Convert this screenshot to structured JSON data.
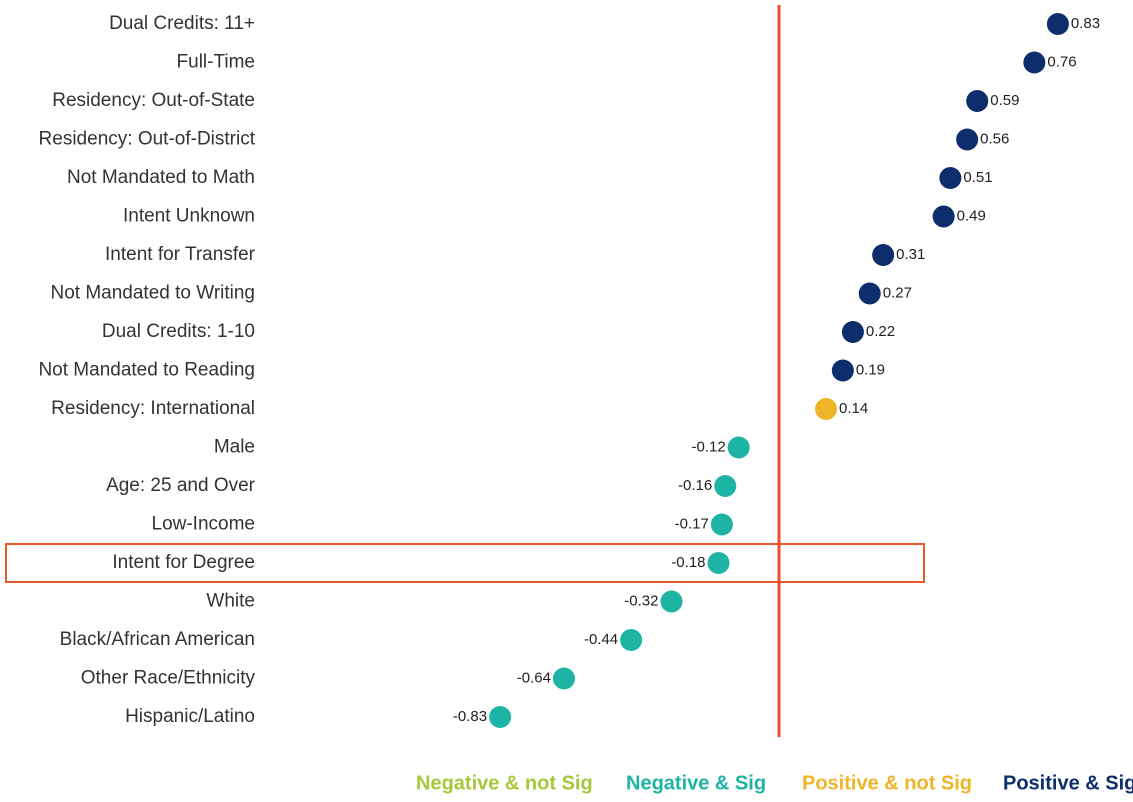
{
  "chart_data": {
    "type": "dot",
    "categories": [
      "Dual Credits: 11+",
      "Full-Time",
      "Residency: Out-of-State",
      "Residency: Out-of-District",
      "Not Mandated to Math",
      "Intent Unknown",
      "Intent for Transfer",
      "Not Mandated to Writing",
      "Dual Credits: 1-10",
      "Not Mandated to Reading",
      "Residency: International",
      "Male",
      "Age: 25 and Over",
      "Low-Income",
      "Intent for Degree",
      "White",
      "Black/African American",
      "Other Race/Ethnicity",
      "Hispanic/Latino"
    ],
    "series": [
      {
        "name": "Negative & not Sig",
        "color": "#a8c83c",
        "values": [
          null,
          null,
          null,
          null,
          null,
          null,
          null,
          null,
          null,
          null,
          null,
          null,
          null,
          null,
          null,
          null,
          null,
          null,
          null
        ]
      },
      {
        "name": "Negative & Sig",
        "color": "#1eb4a4",
        "values": [
          null,
          null,
          null,
          null,
          null,
          null,
          null,
          null,
          null,
          null,
          null,
          -0.12,
          -0.16,
          -0.17,
          -0.18,
          -0.32,
          -0.44,
          -0.64,
          -0.83
        ]
      },
      {
        "name": "Positive & not Sig",
        "color": "#f0b429",
        "values": [
          null,
          null,
          null,
          null,
          null,
          null,
          null,
          null,
          null,
          null,
          0.14,
          null,
          null,
          null,
          null,
          null,
          null,
          null,
          null
        ]
      },
      {
        "name": "Positive & Sig",
        "color": "#0d2d6c",
        "values": [
          0.83,
          0.76,
          0.59,
          0.56,
          0.51,
          0.49,
          0.31,
          0.27,
          0.22,
          0.19,
          null,
          null,
          null,
          null,
          null,
          null,
          null,
          null,
          null
        ]
      }
    ],
    "xlim": [
      -1.5,
      1.0
    ],
    "highlight": "Intent for Degree",
    "legend": "bottom"
  }
}
